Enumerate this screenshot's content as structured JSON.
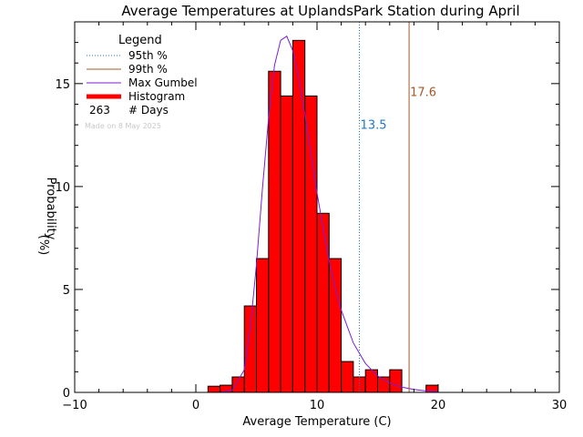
{
  "chart_data": {
    "type": "bar",
    "title": "Average Temperatures at UplandsPark Station during April",
    "xlabel": "Average Temperature (C)",
    "ylabel_line1": "Probability",
    "ylabel_line2": "(%)",
    "xlim": [
      -10,
      30
    ],
    "ylim": [
      0,
      18
    ],
    "xticks": [
      -10,
      0,
      10,
      20,
      30
    ],
    "xtick_labels": [
      "−10",
      "0",
      "10",
      "20",
      "30"
    ],
    "yticks": [
      0,
      5,
      10,
      15
    ],
    "ytick_labels": [
      "0",
      "5",
      "10",
      "15"
    ],
    "bin_width": 1,
    "histogram": {
      "bin_left_edges": [
        1,
        2,
        3,
        4,
        5,
        6,
        7,
        8,
        9,
        10,
        11,
        12,
        13,
        14,
        15,
        16,
        17,
        18,
        19
      ],
      "values": [
        0.3,
        0.35,
        0.75,
        4.2,
        6.5,
        15.6,
        14.4,
        17.1,
        14.4,
        8.7,
        6.5,
        1.5,
        0.75,
        1.1,
        0.75,
        1.1,
        0,
        0,
        0.35
      ]
    },
    "gumbel_curve": {
      "x": [
        2,
        3,
        4,
        4.5,
        5,
        5.5,
        6,
        6.5,
        7,
        7.5,
        8,
        8.5,
        9,
        9.5,
        10,
        10.5,
        11,
        11.5,
        12,
        13,
        14,
        15,
        16,
        17,
        18,
        19,
        20
      ],
      "y": [
        0,
        0.1,
        1.1,
        3.2,
        6.2,
        9.9,
        13.3,
        15.9,
        17.1,
        17.3,
        16.6,
        15.2,
        13.5,
        11.6,
        9.7,
        8.0,
        6.4,
        5.1,
        4.0,
        2.4,
        1.4,
        0.8,
        0.45,
        0.25,
        0.14,
        0.07,
        0.03
      ]
    },
    "p95": {
      "value": 13.5,
      "label": "13.5",
      "label_y": 12.8
    },
    "p99": {
      "value": 17.6,
      "label": "17.6",
      "label_y": 14.4
    },
    "legend": {
      "title": "Legend",
      "placement": "top-left",
      "entries": [
        {
          "label": "95th %",
          "style": "dotted",
          "color": "#1e78c8"
        },
        {
          "label": "99th %",
          "style": "solid",
          "color": "#a5582a"
        },
        {
          "label": "Max Gumbel",
          "style": "solid",
          "color": "#7a1fd6"
        },
        {
          "label": "Histogram",
          "style": "thick",
          "color": "#ff0000"
        }
      ],
      "count_value": "263",
      "count_label": "# Days"
    },
    "made_on": "Made on 8 May 2025",
    "colors": {
      "histogram_fill": "#ff0000",
      "histogram_edge": "#000000",
      "gumbel": "#7a1fd6",
      "p95": "#1e78c8",
      "p99": "#a5582a",
      "made_on": "#c8c8c8"
    }
  }
}
